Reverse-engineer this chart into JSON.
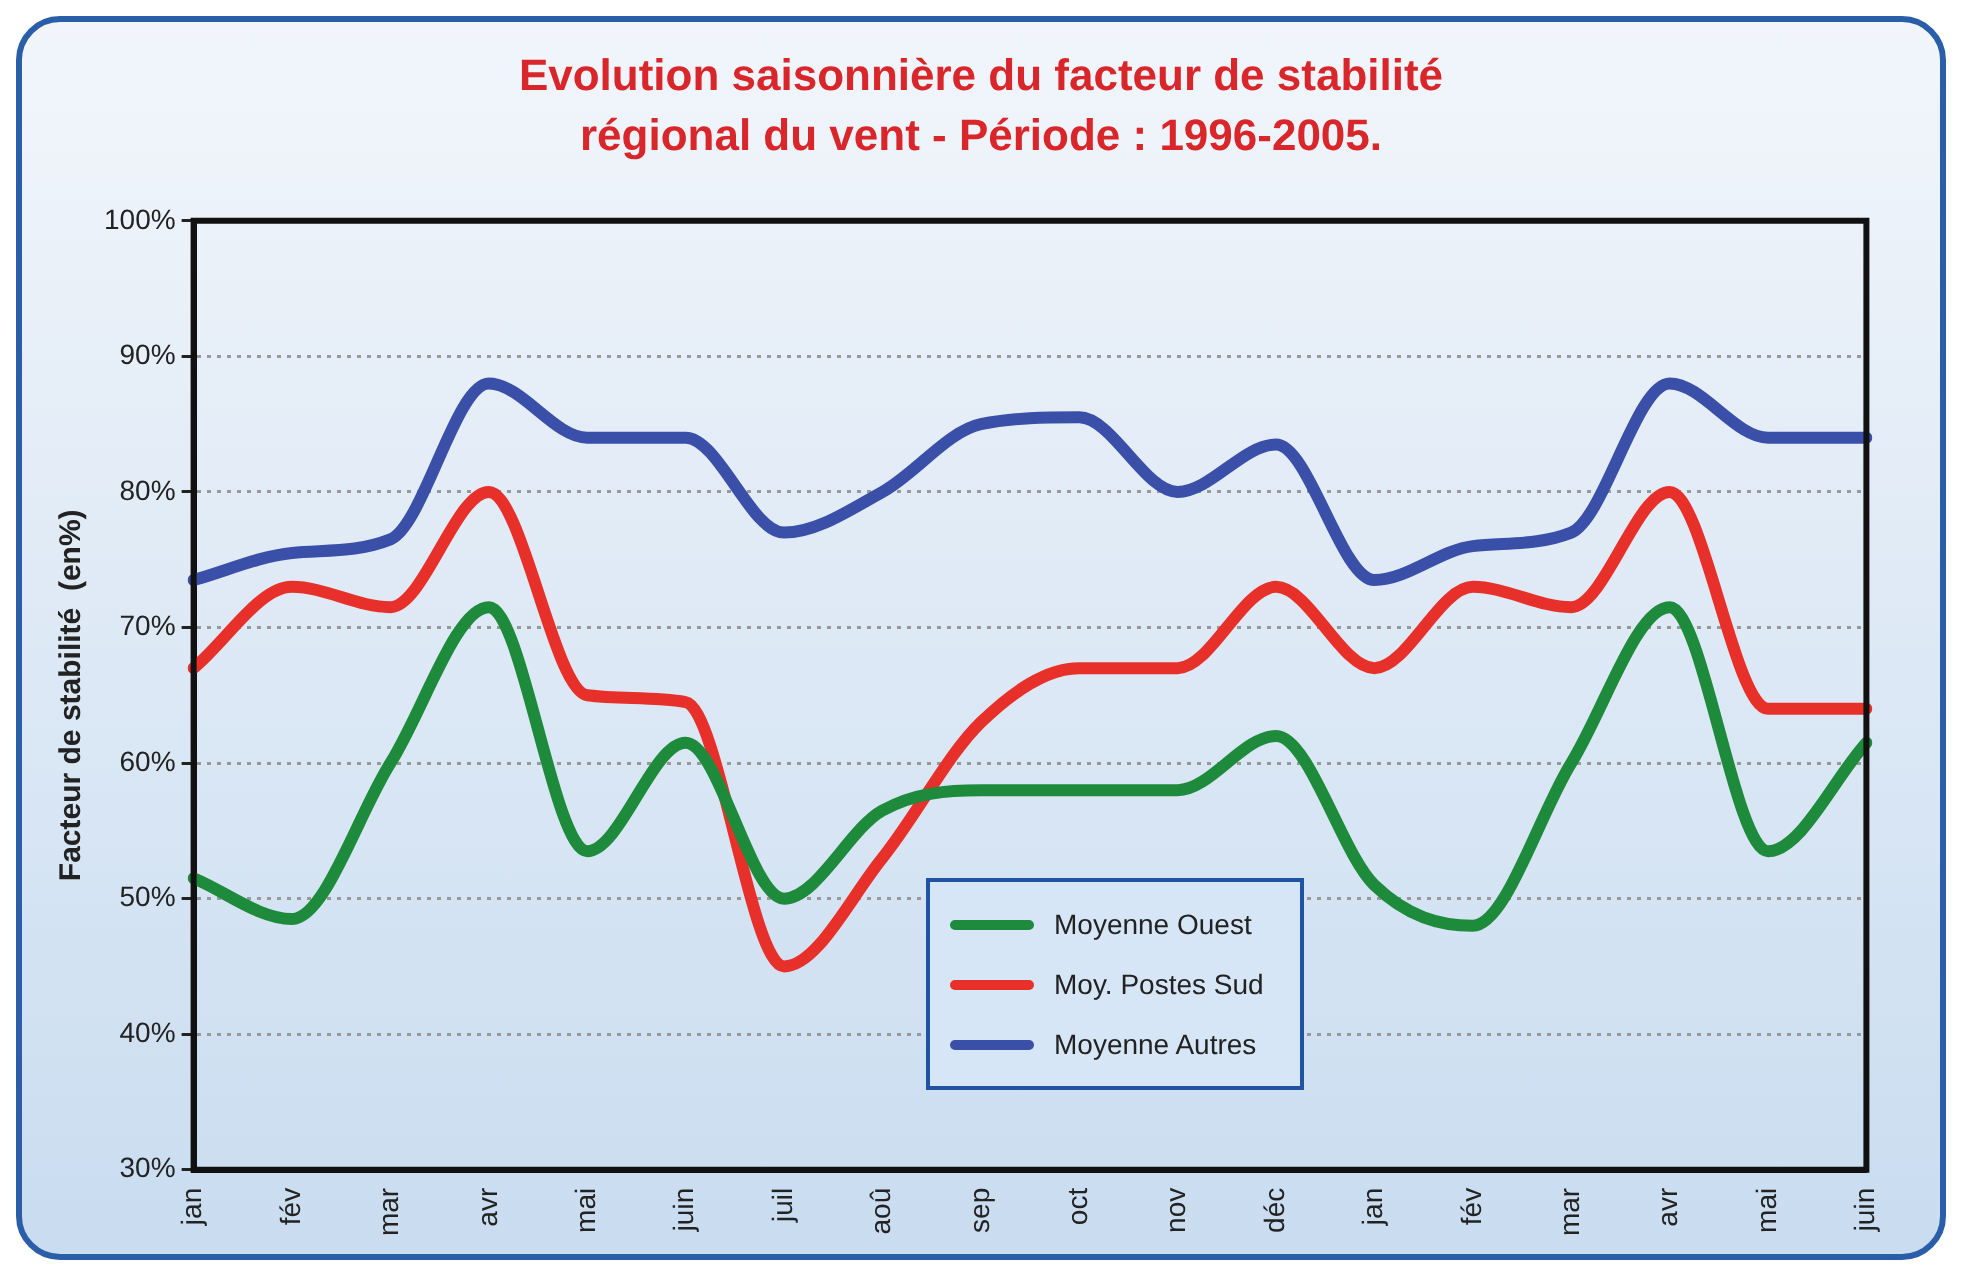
{
  "chart_data": {
    "type": "line",
    "title": "Evolution saisonnière du facteur de stabilité\nrégional du vent - Période : 1996-2005.",
    "ylabel": "Facteur de stabilité  (en%)",
    "categories": [
      "jan",
      "fév",
      "mar",
      "avr",
      "mai",
      "juin",
      "juil",
      "aoû",
      "sep",
      "oct",
      "nov",
      "déc",
      "jan",
      "fév",
      "mar",
      "avr",
      "mai",
      "juin"
    ],
    "series": [
      {
        "name": "Moyenne Ouest",
        "color": "#1e8a3c",
        "values": [
          51.5,
          48.5,
          60,
          71.5,
          53.5,
          61.5,
          50,
          56.5,
          58,
          58,
          58,
          62,
          51,
          48,
          60,
          71.5,
          53.5,
          61.5
        ]
      },
      {
        "name": "Moy. Postes Sud",
        "color": "#e8302a",
        "values": [
          67,
          73,
          71.5,
          80,
          65,
          64.5,
          45,
          53,
          63,
          67,
          67,
          73,
          67,
          73,
          71.5,
          80,
          64,
          64
        ]
      },
      {
        "name": "Moyenne Autres",
        "color": "#3a4fa8",
        "values": [
          73.5,
          75.5,
          76.5,
          88,
          84,
          84,
          77,
          80,
          85,
          85.5,
          80,
          83.5,
          73.5,
          76,
          77,
          88,
          84,
          84
        ]
      }
    ],
    "ylim": [
      30,
      100
    ],
    "yticks": [
      {
        "value": 30,
        "label": "30%"
      },
      {
        "value": 40,
        "label": "40%"
      },
      {
        "value": 50,
        "label": "50%"
      },
      {
        "value": 60,
        "label": "60%"
      },
      {
        "value": 70,
        "label": "70%"
      },
      {
        "value": 80,
        "label": "80%"
      },
      {
        "value": 90,
        "label": "90%"
      },
      {
        "value": 100,
        "label": "100%"
      }
    ],
    "grid": "y",
    "legend": "bottom",
    "marker": "none",
    "line_style": "solid"
  }
}
